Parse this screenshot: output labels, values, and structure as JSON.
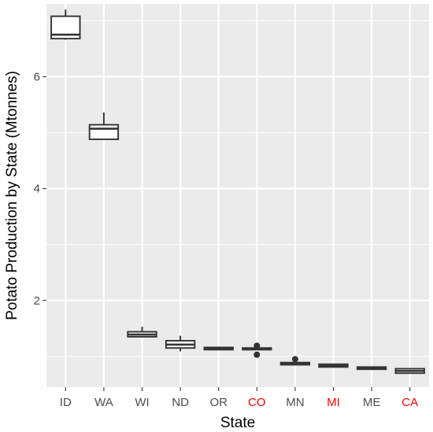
{
  "chart_data": {
    "type": "boxplot",
    "xlabel": "State",
    "ylabel": "Potato Production by State (Mtonnes)",
    "ylim": [
      0.45,
      7.3
    ],
    "yticks": [
      2,
      4,
      6
    ],
    "grid": true,
    "legend": "none",
    "colors": {
      "panel_background": "#EBEBEB",
      "grid_line": "#FFFFFF",
      "box_line": "#333333",
      "box_fill": "#FFFFFF",
      "tick_label_default": "#4D4D4D",
      "tick_label_highlight": "#FF0000"
    },
    "categories": [
      "ID",
      "WA",
      "WI",
      "ND",
      "OR",
      "CO",
      "MN",
      "MI",
      "ME",
      "CA"
    ],
    "highlighted_categories": [
      "CO",
      "MI",
      "CA"
    ],
    "boxes": [
      {
        "category": "ID",
        "min": 6.66,
        "q1": 6.68,
        "median": 6.75,
        "q3": 7.08,
        "max": 7.2,
        "outliers": []
      },
      {
        "category": "WA",
        "min": 4.88,
        "q1": 4.88,
        "median": 5.07,
        "q3": 5.14,
        "max": 5.36,
        "outliers": []
      },
      {
        "category": "WI",
        "min": 1.35,
        "q1": 1.35,
        "median": 1.39,
        "q3": 1.44,
        "max": 1.53,
        "outliers": []
      },
      {
        "category": "ND",
        "min": 1.09,
        "q1": 1.15,
        "median": 1.21,
        "q3": 1.28,
        "max": 1.37,
        "outliers": []
      },
      {
        "category": "OR",
        "min": 1.12,
        "q1": 1.12,
        "median": 1.14,
        "q3": 1.16,
        "max": 1.16,
        "outliers": []
      },
      {
        "category": "CO",
        "min": 1.12,
        "q1": 1.12,
        "median": 1.14,
        "q3": 1.15,
        "max": 1.15,
        "outliers": [
          1.19,
          1.03
        ]
      },
      {
        "category": "MN",
        "min": 0.85,
        "q1": 0.85,
        "median": 0.87,
        "q3": 0.89,
        "max": 0.89,
        "outliers": [
          0.95
        ]
      },
      {
        "category": "MI",
        "min": 0.81,
        "q1": 0.81,
        "median": 0.83,
        "q3": 0.86,
        "max": 0.87,
        "outliers": []
      },
      {
        "category": "ME",
        "min": 0.76,
        "q1": 0.77,
        "median": 0.79,
        "q3": 0.81,
        "max": 0.82,
        "outliers": []
      },
      {
        "category": "CA",
        "min": 0.7,
        "q1": 0.7,
        "median": 0.74,
        "q3": 0.78,
        "max": 0.79,
        "outliers": []
      }
    ]
  }
}
